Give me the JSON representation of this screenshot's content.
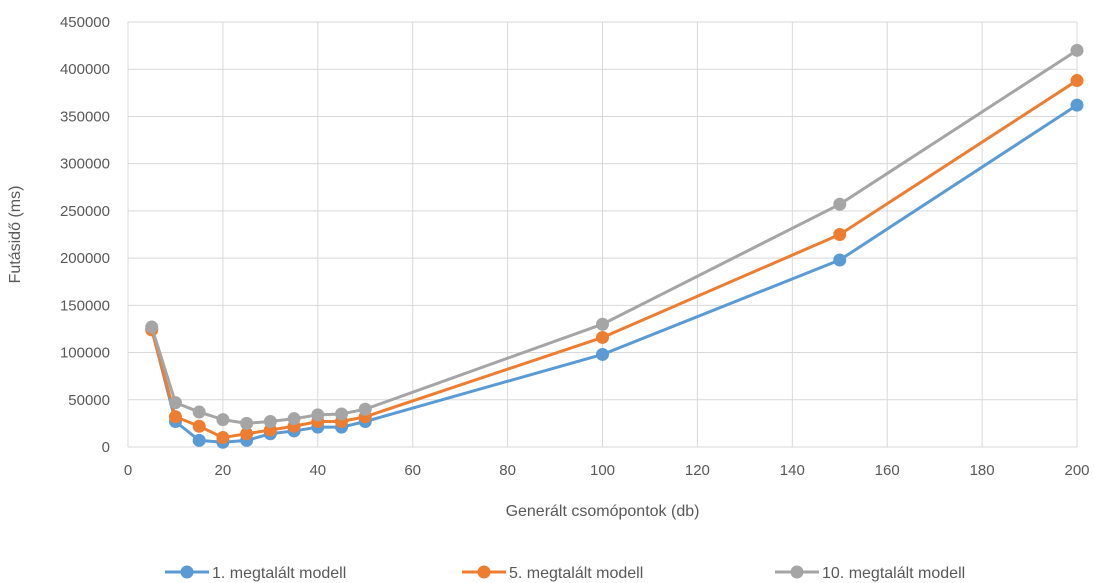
{
  "chart_data": {
    "type": "line",
    "title": "",
    "xlabel": "Generált csomópontok (db)",
    "ylabel": "Futásidő (ms)",
    "xlim": [
      0,
      200
    ],
    "ylim": [
      0,
      450000
    ],
    "xticks": [
      0,
      20,
      40,
      60,
      80,
      100,
      120,
      140,
      160,
      180,
      200
    ],
    "yticks": [
      0,
      50000,
      100000,
      150000,
      200000,
      250000,
      300000,
      350000,
      400000,
      450000
    ],
    "grid": true,
    "legend_position": "bottom",
    "x": [
      5,
      10,
      15,
      20,
      25,
      30,
      35,
      40,
      45,
      50,
      100,
      150,
      200
    ],
    "series": [
      {
        "name": "1. megtalált modell",
        "color": "#5b9bd5",
        "values": [
          125000,
          27000,
          7000,
          5000,
          7000,
          14000,
          17000,
          21000,
          21000,
          27000,
          98000,
          198000,
          362000
        ]
      },
      {
        "name": "5. megtalált modell",
        "color": "#ed7d31",
        "values": [
          124000,
          32000,
          22000,
          10000,
          14000,
          18000,
          22000,
          27000,
          27000,
          32000,
          116000,
          225000,
          388000
        ]
      },
      {
        "name": "10. megtalált modell",
        "color": "#a5a5a5",
        "values": [
          127000,
          47000,
          37000,
          29000,
          25000,
          27000,
          30000,
          34000,
          35000,
          40000,
          130000,
          257000,
          420000
        ]
      }
    ]
  }
}
